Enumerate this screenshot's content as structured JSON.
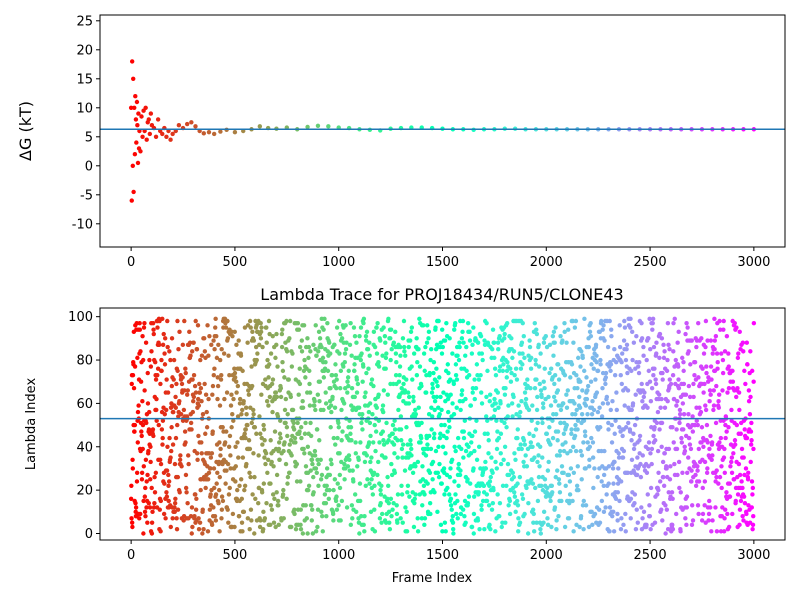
{
  "chart_data": [
    {
      "type": "scatter",
      "title": "",
      "xlabel": "",
      "ylabel": "ΔG (kT)",
      "xlim": [
        -150,
        3150
      ],
      "ylim": [
        -14,
        26
      ],
      "xticks": [
        0,
        500,
        1000,
        1500,
        2000,
        2500,
        3000
      ],
      "yticks": [
        -10,
        -5,
        0,
        5,
        10,
        15,
        20,
        25
      ],
      "grid": false,
      "colormap": "rainbow",
      "hline": {
        "y": 6.3,
        "color": "#1f77b4"
      },
      "series": [
        {
          "x": [
            0,
            3,
            5,
            8,
            10,
            12,
            15,
            18,
            20,
            23,
            25,
            28,
            30,
            33,
            35,
            38,
            40,
            45,
            50,
            55,
            60,
            65,
            70,
            75,
            80,
            85,
            90,
            95,
            100,
            110,
            120,
            130,
            140,
            150,
            160,
            170,
            180,
            190,
            200,
            215,
            230,
            250,
            270,
            290,
            310,
            330,
            350,
            375,
            400,
            430,
            460,
            500,
            540,
            580,
            620,
            660,
            700,
            750,
            800,
            850,
            900,
            950,
            1000,
            1050,
            1100,
            1150,
            1200,
            1250,
            1300,
            1350,
            1400,
            1450,
            1500,
            1550,
            1600,
            1650,
            1700,
            1750,
            1800,
            1850,
            1900,
            1950,
            2000,
            2050,
            2100,
            2150,
            2200,
            2250,
            2300,
            2350,
            2400,
            2450,
            2500,
            2550,
            2600,
            2650,
            2700,
            2750,
            2800,
            2850,
            2900,
            2950,
            3000
          ],
          "y": [
            10.0,
            -6.0,
            18.0,
            0.0,
            15.0,
            -4.5,
            10.0,
            2.0,
            12.0,
            8.0,
            4.0,
            11.0,
            7.0,
            0.5,
            9.0,
            3.0,
            6.0,
            2.5,
            8.5,
            5.0,
            9.5,
            6.0,
            10.0,
            4.5,
            7.5,
            8.0,
            5.5,
            9.0,
            7.0,
            6.5,
            5.0,
            8.0,
            6.0,
            5.5,
            6.5,
            5.0,
            6.0,
            4.5,
            5.5,
            6.0,
            7.0,
            6.5,
            7.2,
            7.5,
            6.8,
            6.0,
            5.6,
            5.8,
            5.5,
            5.9,
            6.2,
            5.8,
            6.0,
            6.3,
            6.8,
            6.5,
            6.4,
            6.6,
            6.3,
            6.7,
            6.9,
            6.8,
            6.6,
            6.5,
            6.3,
            6.2,
            6.1,
            6.4,
            6.5,
            6.6,
            6.6,
            6.5,
            6.4,
            6.3,
            6.3,
            6.2,
            6.3,
            6.3,
            6.4,
            6.4,
            6.3,
            6.3,
            6.3,
            6.3,
            6.3,
            6.3,
            6.3,
            6.3,
            6.3,
            6.3,
            6.3,
            6.3,
            6.3,
            6.3,
            6.3,
            6.3,
            6.3,
            6.3,
            6.3,
            6.3,
            6.3,
            6.3,
            6.3
          ]
        }
      ]
    },
    {
      "type": "scatter",
      "title": "Lambda Trace for PROJ18434/RUN5/CLONE43",
      "xlabel": "Frame Index",
      "ylabel": "Lambda Index",
      "xlim": [
        -150,
        3150
      ],
      "ylim": [
        -3,
        104
      ],
      "xticks": [
        0,
        500,
        1000,
        1500,
        2000,
        2500,
        3000
      ],
      "yticks": [
        0,
        20,
        40,
        60,
        80,
        100
      ],
      "grid": false,
      "colormap": "rainbow",
      "hline": {
        "y": 53,
        "color": "#1f77b4"
      },
      "series": [
        {
          "x_range": [
            0,
            3000
          ],
          "point_count": 3000,
          "y_range": [
            0,
            99
          ],
          "distribution": "approximately uniform random lambda index per frame"
        }
      ]
    }
  ]
}
